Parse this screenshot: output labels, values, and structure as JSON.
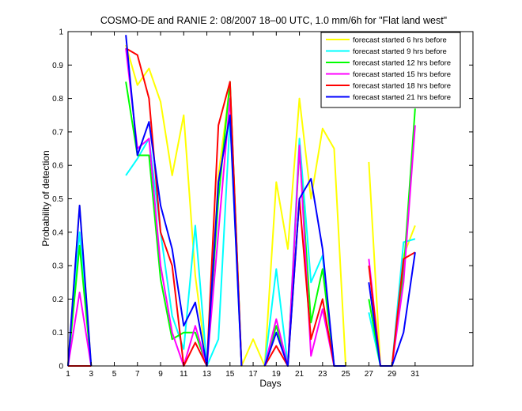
{
  "chart_data": {
    "type": "line",
    "title": "COSMO-DE and RANIE 2: 08/2007 18–00 UTC, 1.0 mm/6h for \"Flat land west\"",
    "xlabel": "Days",
    "ylabel": "Probability of detection",
    "xlim": [
      1,
      36
    ],
    "ylim": [
      0,
      1
    ],
    "xticks": [
      1,
      3,
      5,
      7,
      9,
      11,
      13,
      15,
      17,
      19,
      21,
      23,
      25,
      27,
      29,
      31
    ],
    "yticks": [
      0,
      0.1,
      0.2,
      0.3,
      0.4,
      0.5,
      0.6,
      0.7,
      0.8,
      0.9,
      1
    ],
    "ytick_labels": [
      "0",
      "0.1",
      "0.2",
      "0.3",
      "0.4",
      "0.5",
      "0.6",
      "0.7",
      "0.8",
      "0.9",
      "1"
    ],
    "grid": false,
    "legend_position": "top-right",
    "x": [
      1,
      2,
      3,
      4,
      5,
      6,
      7,
      8,
      9,
      10,
      11,
      12,
      13,
      14,
      15,
      16,
      17,
      18,
      19,
      20,
      21,
      22,
      23,
      24,
      25,
      26,
      27,
      28,
      29,
      30,
      31
    ],
    "series": [
      {
        "name": "forecast started 6 hrs before",
        "color": "#ffff00",
        "values": [
          0.0,
          0.48,
          0.0,
          null,
          null,
          0.96,
          0.84,
          0.89,
          0.79,
          0.57,
          0.75,
          0.27,
          0.0,
          0.57,
          0.84,
          0.0,
          0.08,
          0.0,
          0.55,
          0.35,
          0.8,
          0.5,
          0.71,
          0.65,
          0.0,
          null,
          0.61,
          0.0,
          0.0,
          0.33,
          0.42
        ]
      },
      {
        "name": "forecast started 9 hrs before",
        "color": "#00ffff",
        "values": [
          0.0,
          0.4,
          0.0,
          null,
          null,
          0.57,
          0.62,
          0.68,
          0.4,
          0.15,
          0.05,
          0.42,
          0.0,
          0.08,
          0.74,
          0.0,
          null,
          0.0,
          0.29,
          0.0,
          0.68,
          0.25,
          0.33,
          0.0,
          0.0,
          null,
          0.16,
          0.0,
          0.0,
          0.37,
          0.38
        ]
      },
      {
        "name": "forecast started 12 hrs before",
        "color": "#00ff00",
        "values": [
          0.0,
          0.36,
          0.0,
          null,
          null,
          0.85,
          0.63,
          0.63,
          0.26,
          0.08,
          0.1,
          0.1,
          0.0,
          0.5,
          0.85,
          0.0,
          null,
          0.0,
          0.12,
          0.0,
          0.65,
          0.13,
          0.29,
          0.0,
          0.0,
          null,
          0.2,
          0.0,
          0.0,
          0.28,
          0.77
        ]
      },
      {
        "name": "forecast started 15 hrs before",
        "color": "#ff00ff",
        "values": [
          0.0,
          0.22,
          0.0,
          null,
          null,
          0.95,
          0.65,
          0.68,
          0.3,
          0.1,
          0.0,
          0.12,
          0.0,
          0.4,
          0.8,
          0.0,
          null,
          0.0,
          0.14,
          0.0,
          0.66,
          0.03,
          0.17,
          0.0,
          0.0,
          null,
          0.32,
          0.0,
          0.0,
          0.25,
          0.72
        ]
      },
      {
        "name": "forecast started 18 hrs before",
        "color": "#ff0000",
        "values": [
          0.0,
          0.0,
          0.0,
          null,
          null,
          0.95,
          0.93,
          0.8,
          0.4,
          0.3,
          0.0,
          0.07,
          0.0,
          0.72,
          0.85,
          0.0,
          null,
          0.0,
          0.06,
          0.0,
          0.5,
          0.08,
          0.2,
          0.0,
          0.0,
          null,
          0.3,
          0.0,
          0.0,
          0.32,
          0.34
        ]
      },
      {
        "name": "forecast started 21 hrs before",
        "color": "#0000ff",
        "values": [
          0.0,
          0.48,
          0.0,
          null,
          null,
          0.99,
          0.63,
          0.73,
          0.48,
          0.35,
          0.12,
          0.19,
          0.0,
          0.55,
          0.75,
          0.0,
          null,
          0.0,
          0.1,
          0.0,
          0.5,
          0.56,
          0.35,
          0.0,
          0.0,
          null,
          0.25,
          0.0,
          0.0,
          0.1,
          0.34
        ]
      }
    ]
  }
}
